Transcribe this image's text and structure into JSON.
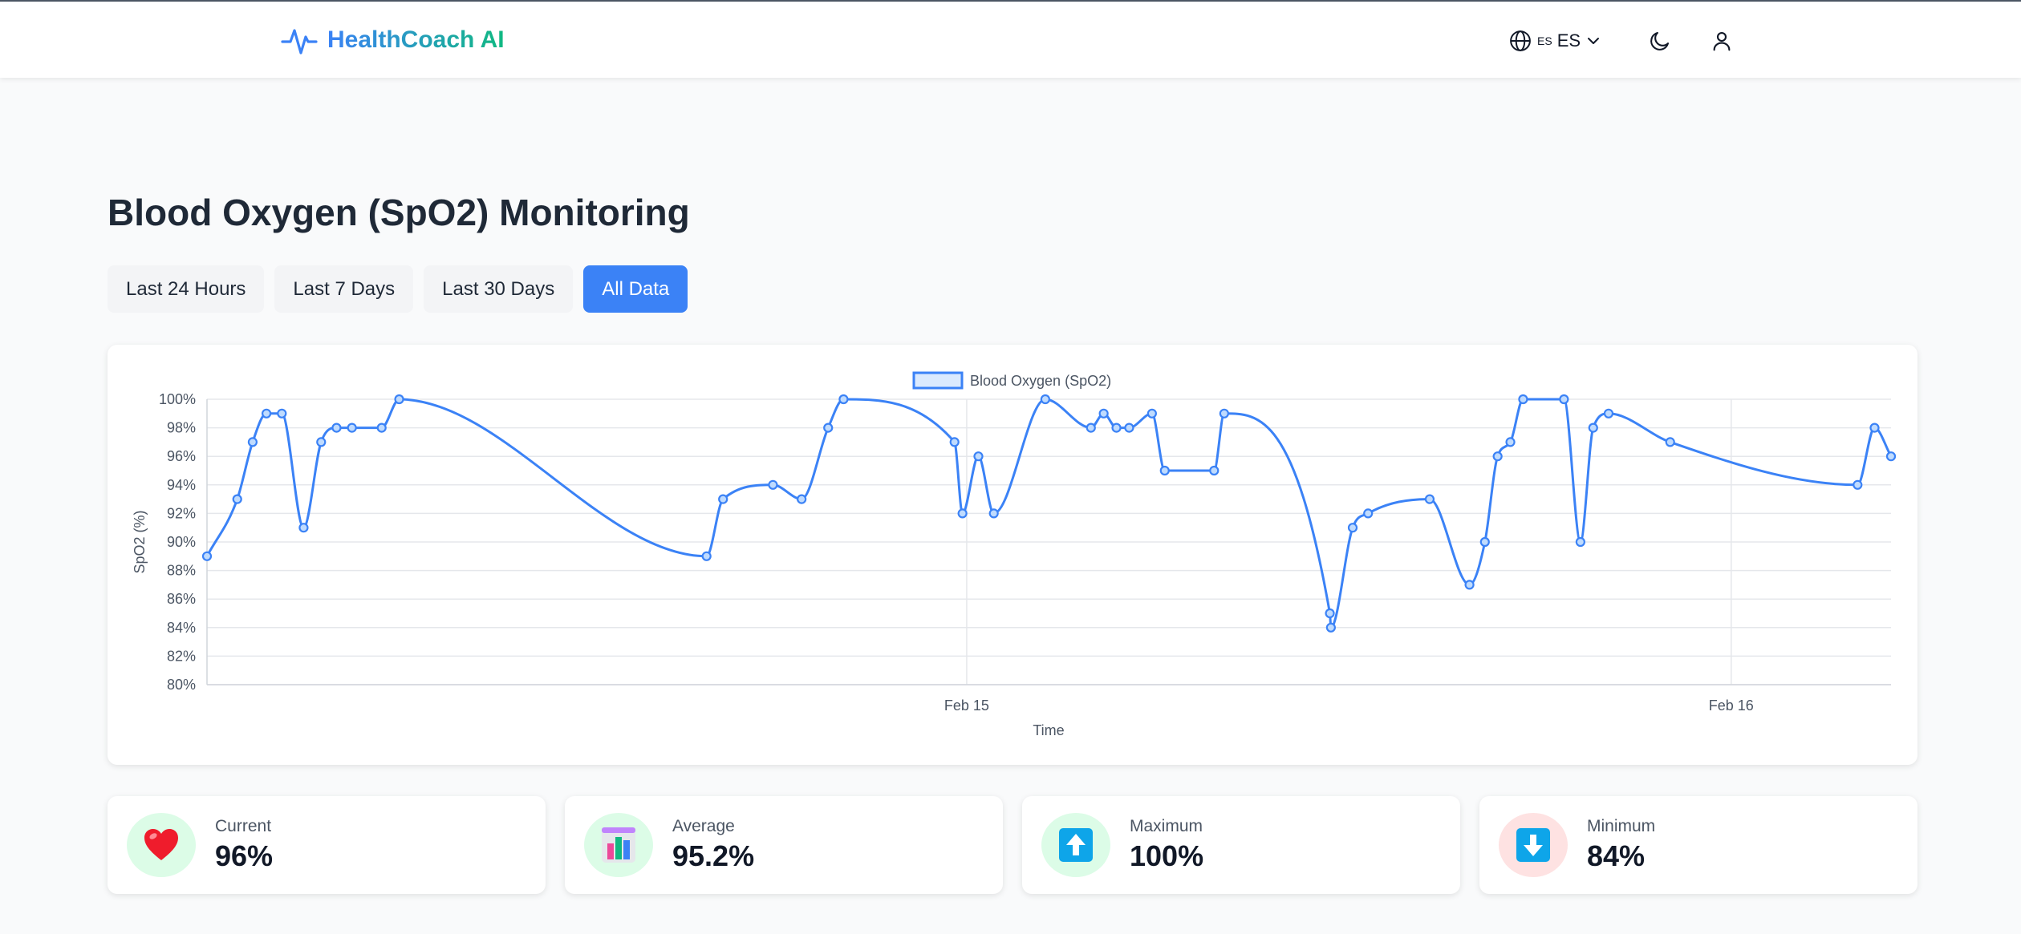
{
  "header": {
    "brand": "HealthCoach AI",
    "lang_small": "ES",
    "lang_label": "ES"
  },
  "page": {
    "title": "Blood Oxygen (SpO2) Monitoring"
  },
  "range_tabs": [
    {
      "label": "Last 24 Hours",
      "active": false
    },
    {
      "label": "Last 7 Days",
      "active": false
    },
    {
      "label": "Last 30 Days",
      "active": false
    },
    {
      "label": "All Data",
      "active": true
    }
  ],
  "colors": {
    "accent": "#3b82f6",
    "line": "#3b82f6",
    "legend_fill": "#dbeafe"
  },
  "chart_data": {
    "type": "line",
    "legend": "Blood Oxygen (SpO2)",
    "legend_position": "top",
    "xlabel": "Time",
    "ylabel": "SpO2 (%)",
    "ylim": [
      80,
      100
    ],
    "yticks": [
      "100%",
      "98%",
      "96%",
      "94%",
      "92%",
      "90%",
      "88%",
      "86%",
      "84%",
      "82%",
      "80%"
    ],
    "xtick_labels": [
      "Feb 15",
      "Feb 16"
    ],
    "grid": true,
    "series": [
      {
        "name": "Blood Oxygen (SpO2)",
        "points": [
          [
            "Feb 14 00:09",
            89
          ],
          [
            "Feb 14 01:06",
            93
          ],
          [
            "Feb 14 01:35",
            97
          ],
          [
            "Feb 14 02:01",
            99
          ],
          [
            "Feb 14 02:30",
            99
          ],
          [
            "Feb 14 03:11",
            91
          ],
          [
            "Feb 14 03:44",
            97
          ],
          [
            "Feb 14 04:13",
            98
          ],
          [
            "Feb 14 04:42",
            98
          ],
          [
            "Feb 14 05:38",
            98
          ],
          [
            "Feb 14 06:11",
            100
          ],
          [
            "Feb 14 15:50",
            89
          ],
          [
            "Feb 14 16:21",
            93
          ],
          [
            "Feb 14 17:55",
            94
          ],
          [
            "Feb 14 18:49",
            93
          ],
          [
            "Feb 14 19:39",
            98
          ],
          [
            "Feb 14 20:08",
            100
          ],
          [
            "Feb 14 23:37",
            97
          ],
          [
            "Feb 14 23:52",
            92
          ],
          [
            "Feb 15 00:22",
            96
          ],
          [
            "Feb 15 00:51",
            92
          ],
          [
            "Feb 15 02:28",
            100
          ],
          [
            "Feb 15 03:54",
            98
          ],
          [
            "Feb 15 04:18",
            99
          ],
          [
            "Feb 15 04:42",
            98
          ],
          [
            "Feb 15 05:06",
            98
          ],
          [
            "Feb 15 05:49",
            99
          ],
          [
            "Feb 15 06:13",
            95
          ],
          [
            "Feb 15 07:46",
            95
          ],
          [
            "Feb 15 08:05",
            99
          ],
          [
            "Feb 15 11:24",
            85
          ],
          [
            "Feb 15 11:26",
            84
          ],
          [
            "Feb 15 12:07",
            91
          ],
          [
            "Feb 15 12:36",
            92
          ],
          [
            "Feb 15 14:32",
            93
          ],
          [
            "Feb 15 15:47",
            87
          ],
          [
            "Feb 15 16:16",
            90
          ],
          [
            "Feb 15 16:40",
            96
          ],
          [
            "Feb 15 17:04",
            97
          ],
          [
            "Feb 15 17:28",
            100
          ],
          [
            "Feb 15 18:45",
            100
          ],
          [
            "Feb 15 19:16",
            90
          ],
          [
            "Feb 15 19:40",
            98
          ],
          [
            "Feb 15 20:09",
            99
          ],
          [
            "Feb 15 22:05",
            97
          ],
          [
            "Feb 16 03:58",
            94
          ],
          [
            "Feb 16 04:30",
            98
          ],
          [
            "Feb 16 05:01",
            96
          ]
        ]
      }
    ]
  },
  "stats": [
    {
      "label": "Current",
      "value": "96%",
      "icon": "heart-icon",
      "icon_bg": "#dcfce7"
    },
    {
      "label": "Average",
      "value": "95.2%",
      "icon": "bar-chart-icon",
      "icon_bg": "#dcfce7"
    },
    {
      "label": "Maximum",
      "value": "100%",
      "icon": "up-arrow-icon",
      "icon_bg": "#dcfce7"
    },
    {
      "label": "Minimum",
      "value": "84%",
      "icon": "down-arrow-icon",
      "icon_bg": "#fee2e2"
    }
  ]
}
